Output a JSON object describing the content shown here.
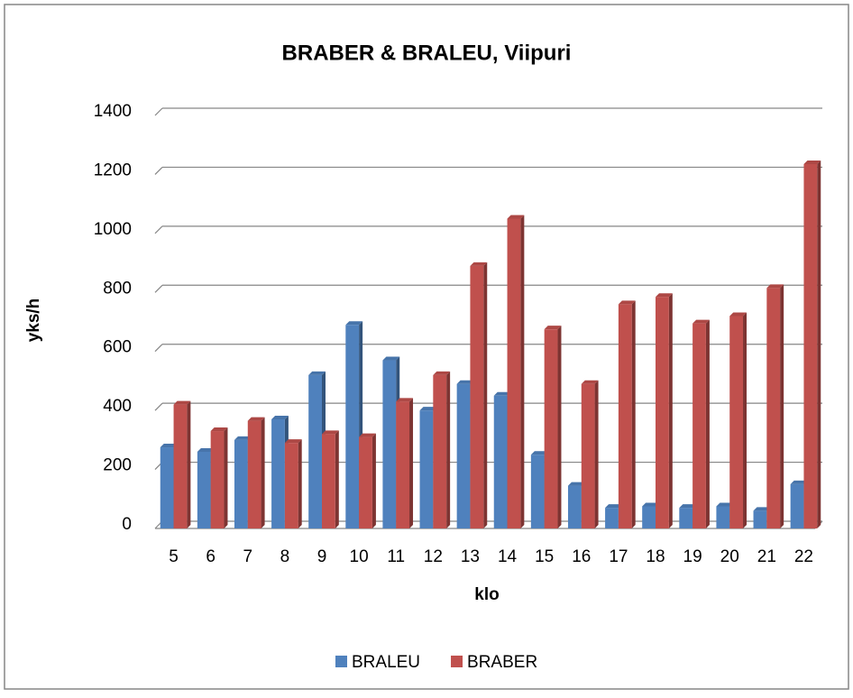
{
  "chart_data": {
    "type": "bar",
    "title": "BRABER & BRALEU, Viipuri",
    "x_label": "klo",
    "y_label": "yks/h",
    "categories": [
      "5",
      "6",
      "7",
      "8",
      "9",
      "10",
      "11",
      "12",
      "13",
      "14",
      "15",
      "16",
      "17",
      "18",
      "19",
      "20",
      "21",
      "22"
    ],
    "series": [
      {
        "name": "BRALEU",
        "color": "#4f81bd",
        "values": [
          275,
          260,
          300,
          370,
          520,
          690,
          570,
          400,
          490,
          450,
          250,
          145,
          70,
          75,
          70,
          75,
          60,
          150
        ]
      },
      {
        "name": "BRABER",
        "color": "#c0504d",
        "values": [
          420,
          330,
          365,
          290,
          320,
          310,
          430,
          520,
          890,
          1050,
          675,
          490,
          760,
          785,
          695,
          720,
          815,
          1235
        ]
      }
    ],
    "ylim": [
      0,
      1400
    ],
    "yticks": [
      0,
      200,
      400,
      600,
      800,
      1000,
      1200,
      1400
    ],
    "grid": true,
    "legend": "bottom"
  }
}
